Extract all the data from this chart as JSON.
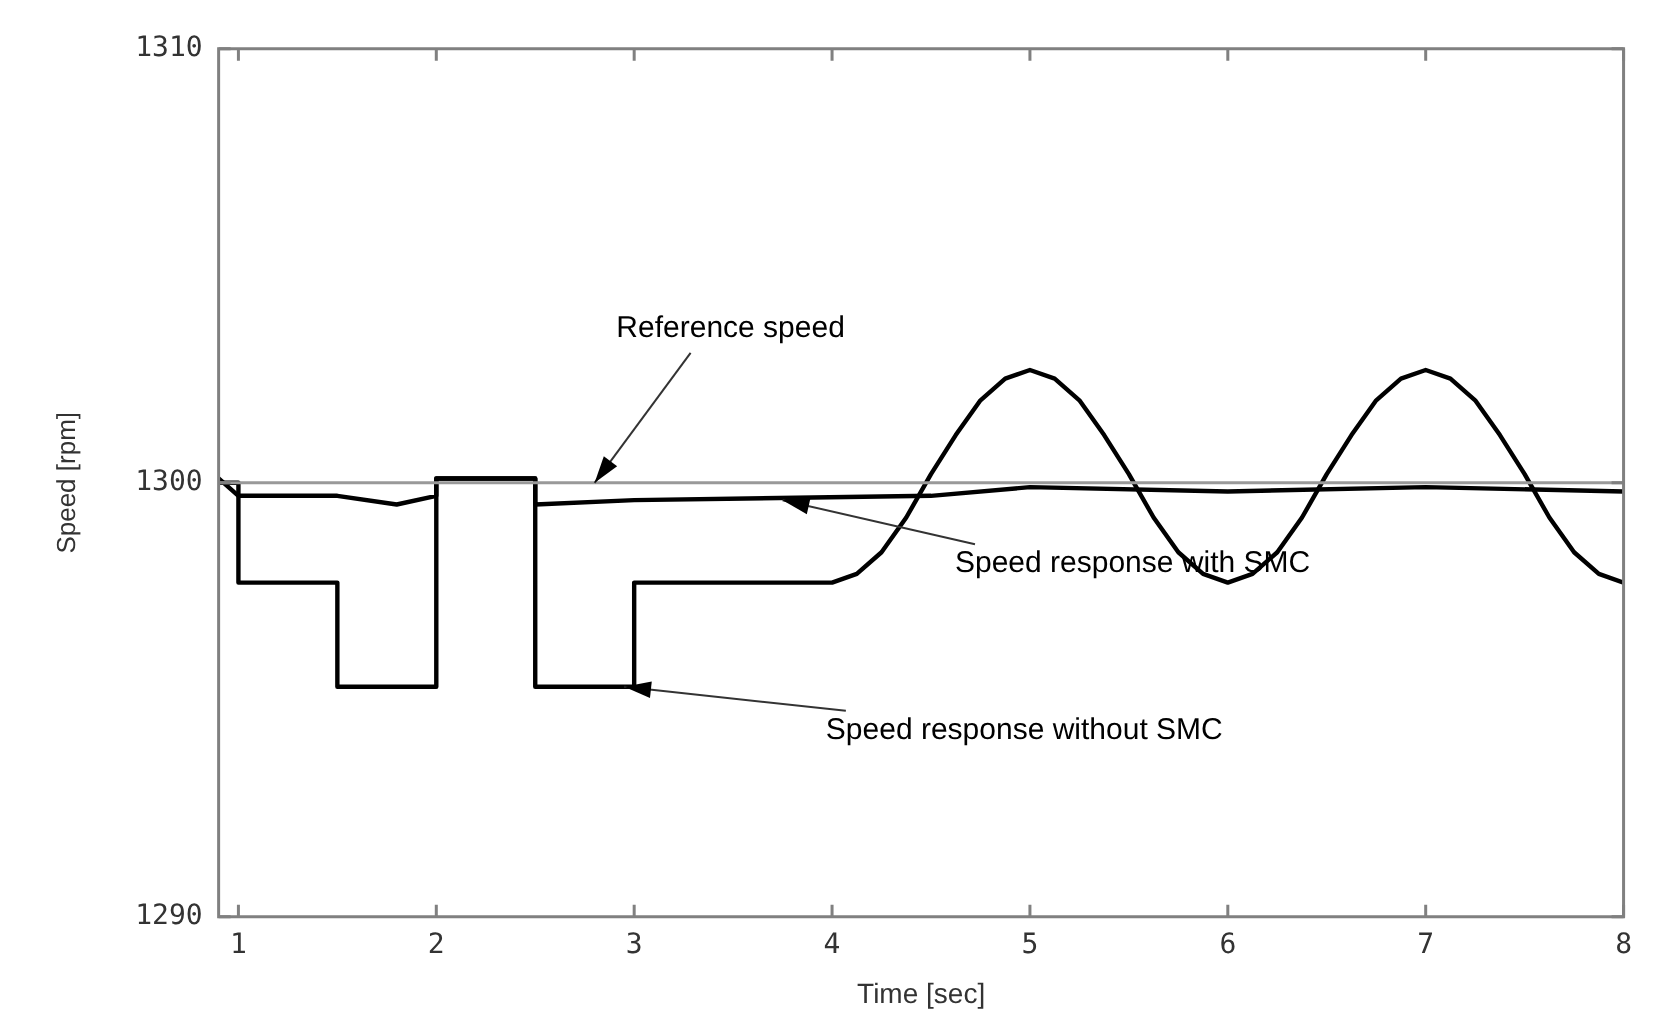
{
  "chart_data": {
    "type": "line",
    "xlabel": "Time [sec]",
    "ylabel": "Speed [rpm]",
    "xlim": [
      0.9,
      8
    ],
    "ylim": [
      1290,
      1310
    ],
    "xticks": [
      1,
      2,
      3,
      4,
      5,
      6,
      7,
      8
    ],
    "yticks": [
      1290,
      1300,
      1310
    ],
    "marker": "none",
    "series": [
      {
        "type": "line",
        "color": "#000000",
        "x": [
          0.9,
          1.0,
          1.0,
          1.5,
          1.5,
          2.0,
          2.0,
          2.5,
          2.5,
          3.0,
          3.0,
          4.0,
          4.125,
          4.25,
          4.375,
          4.5,
          4.625,
          4.75,
          4.875,
          5.0,
          5.125,
          5.25,
          5.375,
          5.5,
          5.625,
          5.75,
          5.875,
          6.0,
          6.125,
          6.25,
          6.375,
          6.5,
          6.625,
          6.75,
          6.875,
          7.0,
          7.125,
          7.25,
          7.375,
          7.5,
          7.625,
          7.75,
          7.875,
          8.0
        ],
        "values": [
          1300,
          1300,
          1297.7,
          1297.7,
          1295.3,
          1295.3,
          1300.1,
          1300.1,
          1295.3,
          1295.3,
          1297.7,
          1297.7,
          1297.9,
          1298.4,
          1299.2,
          1300.2,
          1301.1,
          1301.9,
          1302.4,
          1302.6,
          1302.4,
          1301.9,
          1301.1,
          1300.2,
          1299.2,
          1298.4,
          1297.9,
          1297.7,
          1297.9,
          1298.4,
          1299.2,
          1300.2,
          1301.1,
          1301.9,
          1302.4,
          1302.6,
          1302.4,
          1301.9,
          1301.1,
          1300.2,
          1299.2,
          1298.4,
          1297.9,
          1297.7
        ]
      },
      {
        "type": "line",
        "color": "#000000",
        "x": [
          0.9,
          1.0,
          1.5,
          1.8,
          2.0,
          2.0,
          2.5,
          2.5,
          3.0,
          4.5,
          5.0,
          6.0,
          7.0,
          8.0
        ],
        "values": [
          1300.1,
          1299.7,
          1299.7,
          1299.5,
          1299.7,
          1300.1,
          1300.1,
          1299.5,
          1299.6,
          1299.7,
          1299.9,
          1299.8,
          1299.9,
          1299.8
        ]
      }
    ],
    "ref_lines": [
      {
        "axis": "y",
        "value": 1300,
        "color": "#999999"
      }
    ],
    "annotations": [
      {
        "text": "Reference speed",
        "x": 2.8,
        "y": 1300
      },
      {
        "text": "Speed response with SMC",
        "x": 3.75,
        "y": 1299.6
      },
      {
        "text": "Speed response without SMC",
        "x": 2.95,
        "y": 1295.3
      }
    ]
  }
}
